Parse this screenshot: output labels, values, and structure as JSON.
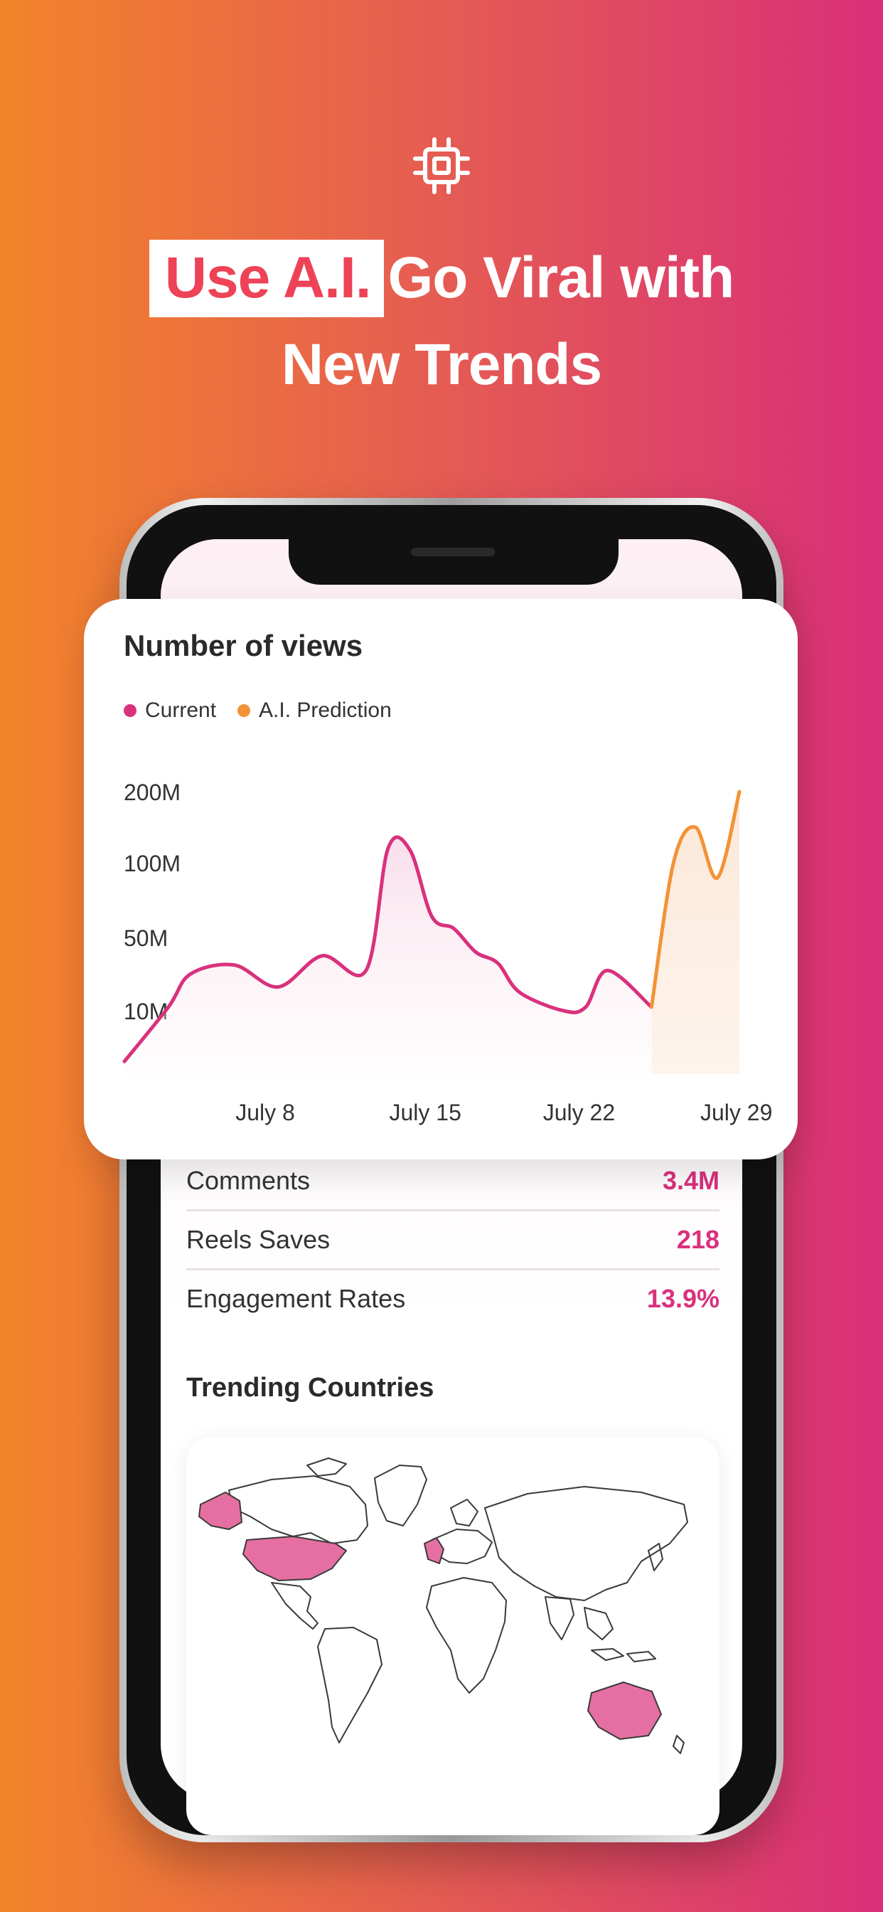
{
  "headline": {
    "highlight": "Use A.I.",
    "line1_rest": "Go Viral with",
    "line2": "New Trends"
  },
  "icons": {
    "top": "chip-icon"
  },
  "colors": {
    "accent": "#d9317d",
    "prediction": "#f39237",
    "headline_highlight": "#ee4256"
  },
  "chart_data": {
    "type": "line",
    "title": "Number of views",
    "legend": [
      "Current",
      "A.I. Prediction"
    ],
    "y_ticks": [
      "200M",
      "100M",
      "50M",
      "10M"
    ],
    "x_ticks": [
      "July 8",
      "July 15",
      "July 22",
      "July 29"
    ],
    "x": [
      1,
      3,
      4,
      6,
      8,
      10,
      12,
      13,
      14,
      15,
      16,
      17,
      18,
      19,
      21,
      22,
      23,
      25,
      26,
      27,
      28,
      29
    ],
    "series": [
      {
        "name": "Current",
        "values": [
          2,
          12,
          30,
          35,
          23,
          40,
          32,
          120,
          118,
          64,
          56,
          42,
          36,
          20,
          10,
          12,
          32,
          12,
          null,
          null,
          null,
          null
        ]
      },
      {
        "name": "A.I. Prediction",
        "values": [
          null,
          null,
          null,
          null,
          null,
          null,
          null,
          null,
          null,
          null,
          null,
          null,
          null,
          null,
          null,
          null,
          null,
          12,
          100,
          150,
          90,
          200
        ]
      }
    ],
    "legend_position": "top-left",
    "grid": false
  },
  "stats": [
    {
      "label": "Comments",
      "value": "3.4M"
    },
    {
      "label": "Reels Saves",
      "value": "218"
    },
    {
      "label": "Engagement Rates",
      "value": "13.9%"
    }
  ],
  "trending": {
    "title": "Trending Countries"
  }
}
